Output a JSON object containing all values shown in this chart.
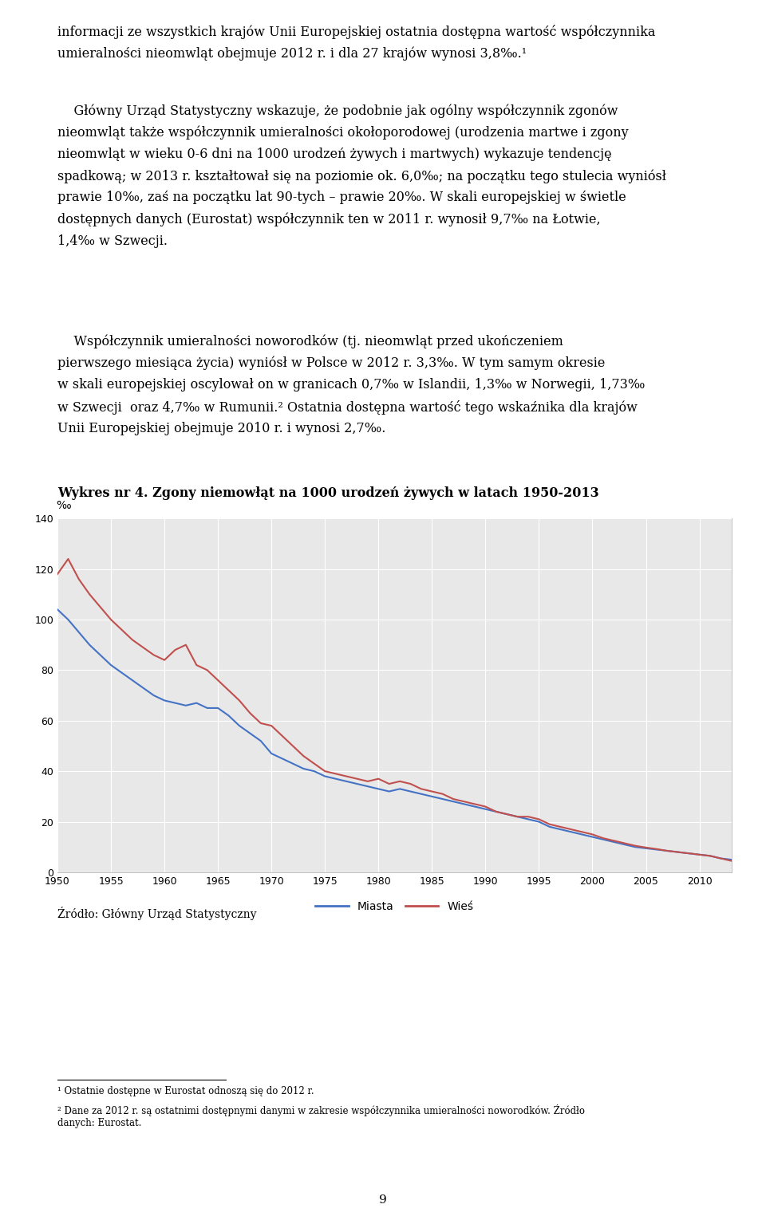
{
  "title": "Wykres nr 4. Zgony niemowłąt na 1000 urodzeń żywych w latach 1950-2013",
  "ylabel": "‰",
  "legend_miasto": "Miasta",
  "legend_wies": "Wieś",
  "source": "Źródło: Główny Urząd Statystyczny",
  "footnote1": "¹ Ostatnie dostępne w Eurostat odnoszą się do 2012 r.",
  "footnote2": "² Dane za 2012 r. są ostatnimi dostępnymi danymi w zakresie współczynnika umieralności noworodków. Źródło\ndanych: Eurostat.",
  "page": "9",
  "ylim": [
    0,
    140
  ],
  "yticks": [
    0,
    20,
    40,
    60,
    80,
    100,
    120,
    140
  ],
  "color_miasta": "#4472C4",
  "color_wies": "#C0504D",
  "years": [
    1950,
    1951,
    1952,
    1953,
    1954,
    1955,
    1956,
    1957,
    1958,
    1959,
    1960,
    1961,
    1962,
    1963,
    1964,
    1965,
    1966,
    1967,
    1968,
    1969,
    1970,
    1971,
    1972,
    1973,
    1974,
    1975,
    1976,
    1977,
    1978,
    1979,
    1980,
    1981,
    1982,
    1983,
    1984,
    1985,
    1986,
    1987,
    1988,
    1989,
    1990,
    1991,
    1992,
    1993,
    1994,
    1995,
    1996,
    1997,
    1998,
    1999,
    2000,
    2001,
    2002,
    2003,
    2004,
    2005,
    2006,
    2007,
    2008,
    2009,
    2010,
    2011,
    2012,
    2013
  ],
  "values_miasta": [
    104,
    100,
    95,
    90,
    86,
    82,
    79,
    76,
    73,
    70,
    68,
    67,
    66,
    67,
    65,
    65,
    62,
    58,
    55,
    52,
    47,
    45,
    43,
    41,
    40,
    38,
    37,
    36,
    35,
    34,
    33,
    32,
    33,
    32,
    31,
    30,
    29,
    28,
    27,
    26,
    25,
    24,
    23,
    22,
    21,
    20,
    18,
    17,
    16,
    15,
    14,
    13,
    12,
    11,
    10,
    9.5,
    9.0,
    8.5,
    8.0,
    7.5,
    7.0,
    6.5,
    5.5,
    5.0
  ],
  "values_wies": [
    118,
    124,
    116,
    110,
    105,
    100,
    96,
    92,
    89,
    86,
    84,
    88,
    90,
    82,
    80,
    76,
    72,
    68,
    63,
    59,
    58,
    54,
    50,
    46,
    43,
    40,
    39,
    38,
    37,
    36,
    37,
    35,
    36,
    35,
    33,
    32,
    31,
    29,
    28,
    27,
    26,
    24,
    23,
    22,
    22,
    21,
    19,
    18,
    17,
    16,
    15,
    13.5,
    12.5,
    11.5,
    10.5,
    9.8,
    9.2,
    8.5,
    8.0,
    7.5,
    7.0,
    6.5,
    5.5,
    4.5
  ],
  "background_color": "#ffffff",
  "plot_bg_color": "#e8e8e8",
  "grid_color": "#ffffff",
  "para1_line1": "informacji ze wszystkich krajów Unii Europejskiej ostatnia dostępna wartość współczynnika",
  "para1_line2": "umieralności nieomwląt obejmuje 2012 r. i dla 27 krajów wynosi 3,8‰.¹",
  "para2_line1": "    Główny Urząd Statystyczny wskazuje, że podobnie jak ogólny współczynnik zgonów",
  "para2_line2": "nieomwląt także współczynnik umieralności okołoporodowej (urodzenia martwe i zgony",
  "para2_line3": "nieomwląt w wieku 0-6 dni na 1000 urodzeń żywych i martwych) wykazuje tendencję",
  "para2_line4": "spadkową; w 2013 r. kształtował się na poziomie ok. 6,0‰; na początku tego stulecia wyniósł",
  "para2_line5": "prawie 10‰, zaś na początku lat 90-tych – prawie 20‰. W skali europejskiej w świetle",
  "para2_line6": "dostępnych danych (Eurostat) współczynnik ten w 2011 r. wynosił 9,7‰ na Łotwie,",
  "para2_line7": "1,4‰ w Szwecji.",
  "para3_line1": "    Współczynnik umieralności noworodków (tj. nieomwląt przed ukończeniem",
  "para3_line2": "pierwszego miesiąca życia) wyniósł w Polsce w 2012 r. 3,3‰. W tym samym okresie",
  "para3_line3": "w skali europejskiej oscylował on w granicach 0,7‰ w Islandii, 1,3‰ w Norwegii, 1,73‰",
  "para3_line4": "w Szwecji  oraz 4,7‰ w Rumunii.² Ostatnia dostępna wartość tego wskaźnika dla krajów",
  "para3_line5": "Unii Europejskiej obejmuje 2010 r. i wynosi 2,7‰."
}
